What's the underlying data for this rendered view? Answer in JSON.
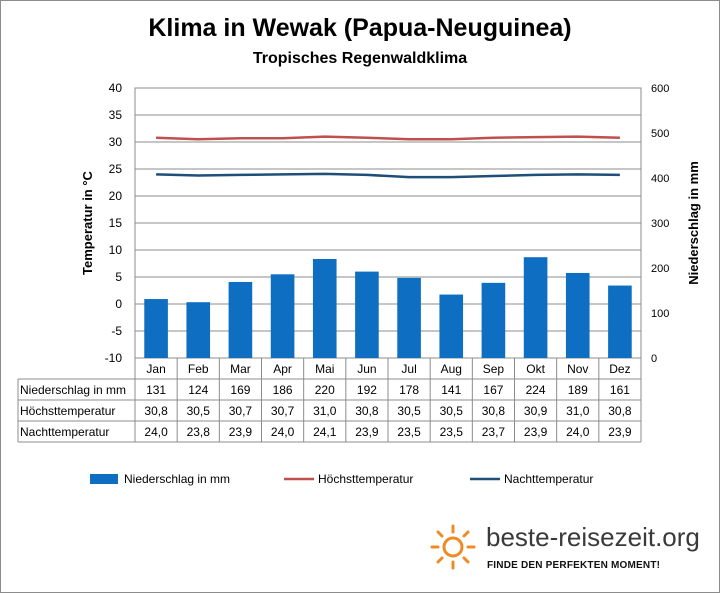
{
  "header": {
    "title": "Klima in Wewak (Papua-Neuguinea)",
    "subtitle": "Tropisches Regenwaldklima"
  },
  "colors": {
    "precip": "#0e6ec2",
    "high": "#c0504d",
    "night": "#1f4e79",
    "grid": "#8c8c8c"
  },
  "chart_data": {
    "type": "bar",
    "categories": [
      "Jan",
      "Feb",
      "Mar",
      "Apr",
      "Mai",
      "Jun",
      "Jul",
      "Aug",
      "Sep",
      "Okt",
      "Nov",
      "Dez"
    ],
    "series": [
      {
        "name": "Niederschlag in mm",
        "type": "bar",
        "axis": "right",
        "values": [
          131,
          124,
          169,
          186,
          220,
          192,
          178,
          141,
          167,
          224,
          189,
          161
        ]
      },
      {
        "name": "Höchsttemperatur",
        "type": "line",
        "axis": "left",
        "values": [
          30.8,
          30.5,
          30.7,
          30.7,
          31.0,
          30.8,
          30.5,
          30.5,
          30.8,
          30.9,
          31.0,
          30.8
        ]
      },
      {
        "name": "Nachttemperatur",
        "type": "line",
        "axis": "left",
        "values": [
          24.0,
          23.8,
          23.9,
          24.0,
          24.1,
          23.9,
          23.5,
          23.5,
          23.7,
          23.9,
          24.0,
          23.9
        ]
      }
    ],
    "ylabel": "Temperatur in °C",
    "y2label": "Niederschlag in mm",
    "ylim": [
      -10,
      40
    ],
    "y2lim": [
      0,
      600
    ],
    "yticks": [
      -10,
      -5,
      0,
      5,
      10,
      15,
      20,
      25,
      30,
      35,
      40
    ],
    "y2ticks": [
      0,
      100,
      200,
      300,
      400,
      500,
      600
    ],
    "table_rows": [
      {
        "label": "Niederschlag in mm",
        "values": [
          "131",
          "124",
          "169",
          "186",
          "220",
          "192",
          "178",
          "141",
          "167",
          "224",
          "189",
          "161"
        ]
      },
      {
        "label": "Höchsttemperatur",
        "values": [
          "30,8",
          "30,5",
          "30,7",
          "30,7",
          "31,0",
          "30,8",
          "30,5",
          "30,5",
          "30,8",
          "30,9",
          "31,0",
          "30,8"
        ]
      },
      {
        "label": "Nachttemperatur",
        "values": [
          "24,0",
          "23,8",
          "23,9",
          "24,0",
          "24,1",
          "23,9",
          "23,5",
          "23,5",
          "23,7",
          "23,9",
          "24,0",
          "23,9"
        ]
      }
    ],
    "grid": true,
    "legend": "bottom"
  },
  "logo": {
    "name": "beste-reisezeit.org",
    "tagline": "FINDE DEN PERFEKTEN MOMENT!",
    "icon": "sun-icon"
  }
}
